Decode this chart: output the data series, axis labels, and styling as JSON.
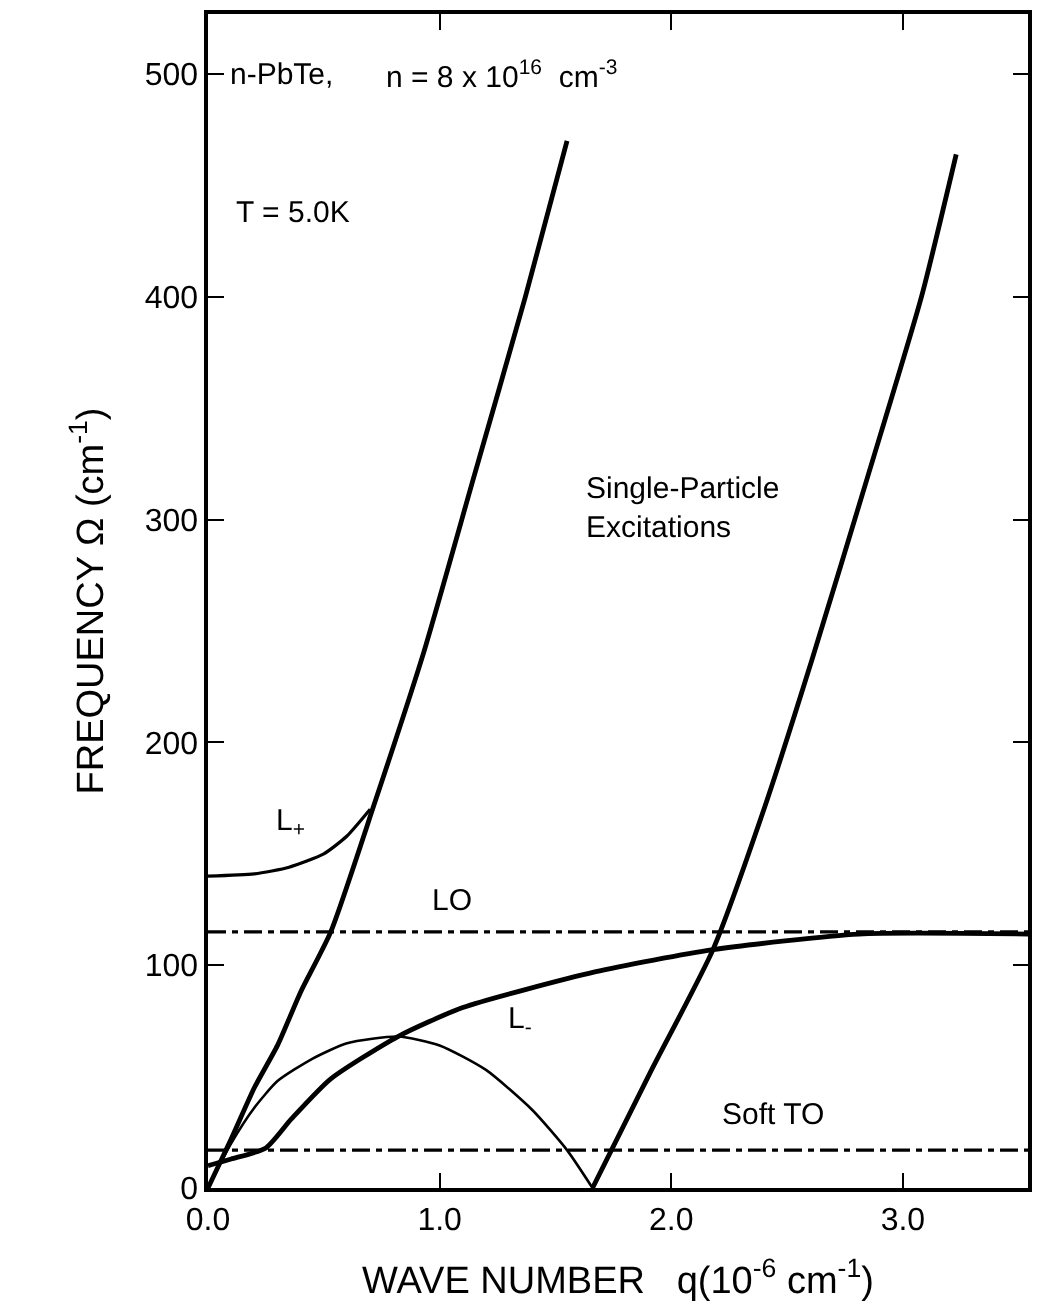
{
  "chart_data": {
    "type": "line",
    "xlabel": "WAVE NUMBER   q(10$^{-6}$ cm$^{-1}$)",
    "ylabel": "FREQUENCY Ω (cm$^{-1}$)",
    "series": [
      {
        "color": "#000000",
        "x": [
          0,
          0.1,
          0.2,
          0.3,
          0.4,
          0.53,
          0.72,
          0.93,
          1.15,
          1.37,
          1.55
        ],
        "values": [
          0,
          22,
          45,
          64,
          88,
          115,
          173,
          240,
          320,
          400,
          470
        ]
      },
      {
        "color": "#000000",
        "x": [
          1.66,
          1.91,
          2.18,
          2.4,
          2.61,
          2.85,
          3.08,
          3.23
        ],
        "values": [
          0,
          52,
          107,
          170,
          238,
          320,
          400,
          464
        ]
      },
      {
        "color": "#000000",
        "x": [
          0,
          0.1,
          0.2,
          0.3,
          0.45,
          0.6,
          0.82,
          1.0,
          1.2,
          1.4,
          1.55,
          1.66
        ],
        "values": [
          0,
          20,
          36,
          48,
          58,
          65,
          68,
          64,
          53,
          35,
          17,
          0
        ]
      },
      {
        "color": "#000000",
        "x": [
          0,
          0.2,
          0.35,
          0.5,
          0.6,
          0.7
        ],
        "values": [
          140,
          141,
          144,
          150,
          158,
          170
        ]
      },
      {
        "color": "#000000",
        "x": [
          0,
          0.1,
          0.25,
          0.36,
          0.53,
          0.82,
          1.1,
          1.67,
          2.18,
          2.81,
          3.54
        ],
        "values": [
          10,
          13,
          18,
          31,
          49,
          68,
          81,
          97,
          107,
          114,
          114
        ]
      }
    ],
    "annotations": [
      "n-PbTe,",
      "n = 8 x 10$^{16}$  cm$^{-3}$",
      "T = 5.0K",
      "Single-Particle\nExcitations",
      "L$_{+}$",
      "L$_{-}$"
    ],
    "ref_lines": [
      {
        "axis": "y",
        "value": 115,
        "label": "LO",
        "color": "#000000",
        "line_style": "dashdot"
      },
      {
        "axis": "y",
        "value": 17,
        "label": "Soft TO",
        "color": "#000000",
        "line_style": "dashdot"
      }
    ],
    "xlim": [
      0,
      3.54
    ],
    "ylim": [
      0,
      527
    ],
    "xticks": [
      {
        "value": 0,
        "label": "0.0"
      },
      {
        "value": 1,
        "label": "1.0"
      },
      {
        "value": 2,
        "label": "2.0"
      },
      {
        "value": 3,
        "label": "3.0"
      }
    ],
    "yticks": [
      0,
      100,
      200,
      300,
      400,
      500
    ]
  }
}
